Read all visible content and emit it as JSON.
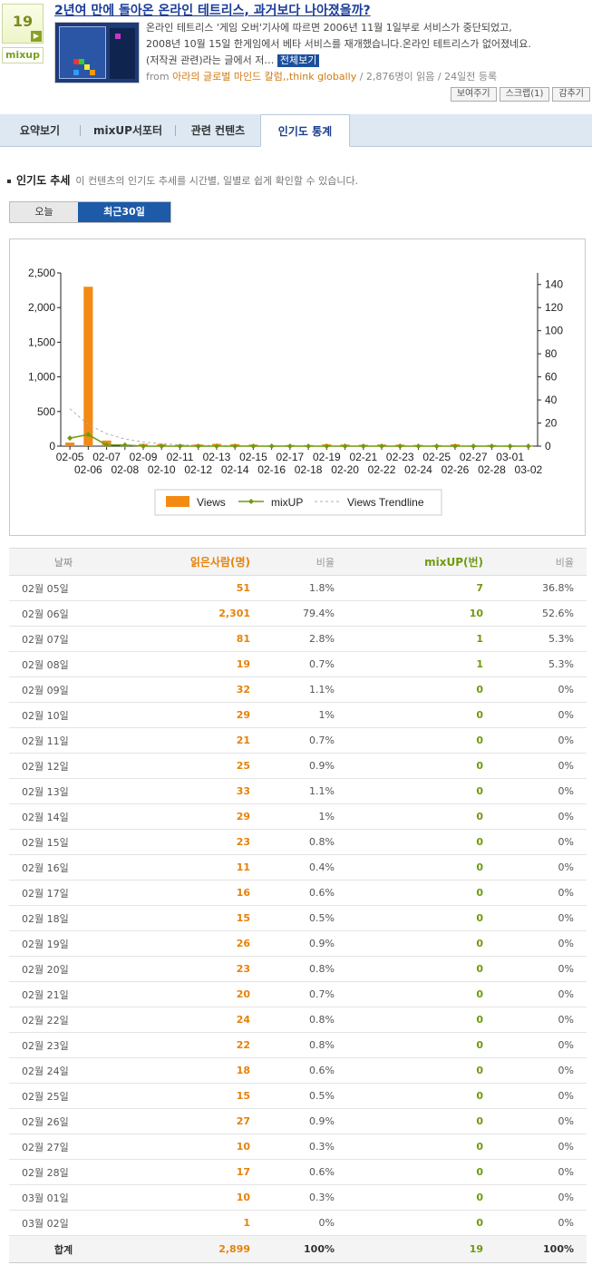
{
  "header": {
    "rank": "19",
    "logo_text": "mixup",
    "title": "2년여 만에 돌아온 온라인 테트리스, 과거보다 나아졌을까?",
    "summary_lines": [
      "온라인 테트리스 '게임 오버'기사에  따르면 2006년 11월 1일부로 서비스가 중단되었고,",
      "2008년 10월 15일 한게임에서 베타 서비스를 재개했습니다.온라인 테트리스가 없어졌네요.",
      "(저작권 관련)라는 글에서 저…"
    ],
    "full_view_label": "전체보기",
    "meta_from": "from",
    "meta_source": "아라의 글로벌 마인드 칼럼,,think globally",
    "meta_stats": " / 2,876명이 읽음 / 24일전 등록",
    "actions": [
      "보여주기",
      "스크랩(1)",
      "감추기"
    ]
  },
  "tabs": [
    "요약보기",
    "mixUP서포터",
    "관련 컨텐츠",
    "인기도 통계"
  ],
  "section": {
    "title": "인기도 추세",
    "desc": "이 컨텐츠의 인기도 추세를 시간별, 일별로 쉽게 확인할 수 있습니다."
  },
  "period": {
    "today": "오늘",
    "month": "최근30일"
  },
  "chart_data": {
    "type": "bar",
    "categories": [
      "02-05",
      "02-06",
      "02-07",
      "02-08",
      "02-09",
      "02-10",
      "02-11",
      "02-12",
      "02-13",
      "02-14",
      "02-15",
      "02-16",
      "02-17",
      "02-18",
      "02-19",
      "02-20",
      "02-21",
      "02-22",
      "02-23",
      "02-24",
      "02-25",
      "02-26",
      "02-27",
      "02-28",
      "03-01",
      "03-02"
    ],
    "series": [
      {
        "name": "Views",
        "type": "bar",
        "axis": "left",
        "color": "#f28a14",
        "values": [
          51,
          2301,
          81,
          19,
          32,
          29,
          21,
          25,
          33,
          29,
          23,
          11,
          16,
          15,
          26,
          23,
          20,
          24,
          22,
          18,
          15,
          27,
          10,
          17,
          10,
          1
        ]
      },
      {
        "name": "mixUP",
        "type": "line",
        "axis": "right",
        "color": "#6e9a0e",
        "values": [
          7,
          10,
          1,
          1,
          0,
          0,
          0,
          0,
          0,
          0,
          0,
          0,
          0,
          0,
          0,
          0,
          0,
          0,
          0,
          0,
          0,
          0,
          0,
          0,
          0,
          0
        ]
      },
      {
        "name": "Views Trendline",
        "type": "trendline",
        "axis": "left",
        "color": "#b0b0b0"
      }
    ],
    "y_left_ticks": [
      "0",
      "500",
      "1,000",
      "1,500",
      "2,000",
      "2,500"
    ],
    "y_left_range": [
      0,
      2500
    ],
    "y_right_ticks": [
      "0",
      "20",
      "40",
      "60",
      "80",
      "100",
      "120",
      "140"
    ],
    "y_right_range": [
      0,
      150
    ],
    "trendline_start": 540,
    "legend": [
      "Views",
      "mixUP",
      "Views Trendline"
    ],
    "grid": false,
    "legend_position": "bottom"
  },
  "table": {
    "headers": [
      "날짜",
      "읽은사람(명)",
      "비율",
      "mixUP(번)",
      "비율"
    ],
    "rows": [
      [
        "02월 05일",
        "51",
        "1.8%",
        "7",
        "36.8%"
      ],
      [
        "02월 06일",
        "2,301",
        "79.4%",
        "10",
        "52.6%"
      ],
      [
        "02월 07일",
        "81",
        "2.8%",
        "1",
        "5.3%"
      ],
      [
        "02월 08일",
        "19",
        "0.7%",
        "1",
        "5.3%"
      ],
      [
        "02월 09일",
        "32",
        "1.1%",
        "0",
        "0%"
      ],
      [
        "02월 10일",
        "29",
        "1%",
        "0",
        "0%"
      ],
      [
        "02월 11일",
        "21",
        "0.7%",
        "0",
        "0%"
      ],
      [
        "02월 12일",
        "25",
        "0.9%",
        "0",
        "0%"
      ],
      [
        "02월 13일",
        "33",
        "1.1%",
        "0",
        "0%"
      ],
      [
        "02월 14일",
        "29",
        "1%",
        "0",
        "0%"
      ],
      [
        "02월 15일",
        "23",
        "0.8%",
        "0",
        "0%"
      ],
      [
        "02월 16일",
        "11",
        "0.4%",
        "0",
        "0%"
      ],
      [
        "02월 17일",
        "16",
        "0.6%",
        "0",
        "0%"
      ],
      [
        "02월 18일",
        "15",
        "0.5%",
        "0",
        "0%"
      ],
      [
        "02월 19일",
        "26",
        "0.9%",
        "0",
        "0%"
      ],
      [
        "02월 20일",
        "23",
        "0.8%",
        "0",
        "0%"
      ],
      [
        "02월 21일",
        "20",
        "0.7%",
        "0",
        "0%"
      ],
      [
        "02월 22일",
        "24",
        "0.8%",
        "0",
        "0%"
      ],
      [
        "02월 23일",
        "22",
        "0.8%",
        "0",
        "0%"
      ],
      [
        "02월 24일",
        "18",
        "0.6%",
        "0",
        "0%"
      ],
      [
        "02월 25일",
        "15",
        "0.5%",
        "0",
        "0%"
      ],
      [
        "02월 26일",
        "27",
        "0.9%",
        "0",
        "0%"
      ],
      [
        "02월 27일",
        "10",
        "0.3%",
        "0",
        "0%"
      ],
      [
        "02월 28일",
        "17",
        "0.6%",
        "0",
        "0%"
      ],
      [
        "03월 01일",
        "10",
        "0.3%",
        "0",
        "0%"
      ],
      [
        "03월 02일",
        "1",
        "0%",
        "0",
        "0%"
      ]
    ],
    "total": [
      "합계",
      "2,899",
      "100%",
      "19",
      "100%"
    ]
  }
}
